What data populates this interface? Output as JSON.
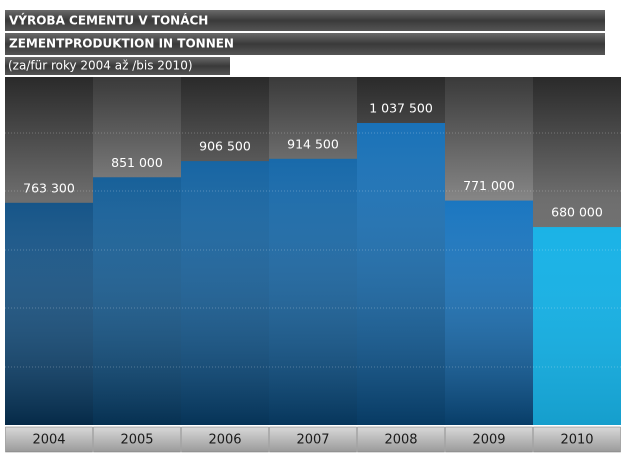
{
  "chart_data": {
    "type": "bar",
    "title": "VÝROBA CEMENTU V TONÁCH",
    "subtitle": "ZEMENTPRODUKTION IN TONNEN",
    "note": "(za/für roky 2004 až /bis 2010)",
    "categories": [
      "2004",
      "2005",
      "2006",
      "2007",
      "2008",
      "2009",
      "2010"
    ],
    "values": [
      763300,
      851000,
      906500,
      914500,
      1037500,
      771000,
      680000
    ],
    "value_labels": [
      "763 300",
      "851 000",
      "906 500",
      "914 500",
      "1 037 500",
      "771 000",
      "680 000"
    ],
    "colors": [
      "#0a4c82",
      "#0b5894",
      "#0b5d9e",
      "#0c62a6",
      "#0d6ab4",
      "#0e6fbd",
      "#18b2e6"
    ]
  }
}
